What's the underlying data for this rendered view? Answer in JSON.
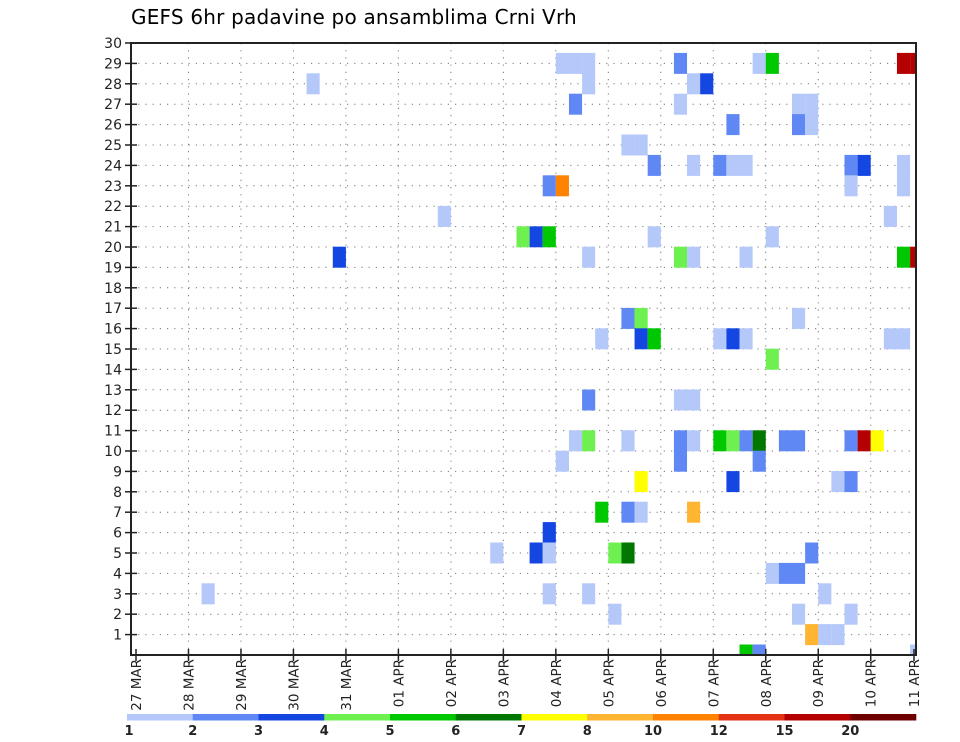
{
  "chart_data": {
    "type": "heatmap",
    "title": "GEFS 6hr padavine po ansamblima Crni Vrh",
    "xlabel": "",
    "ylabel": "",
    "x_unit": "6-hour step from 27 MAR",
    "x_tick_labels": [
      "27 MAR",
      "28 MAR",
      "29 MAR",
      "30 MAR",
      "31 MAR",
      "01 APR",
      "02 APR",
      "03 APR",
      "04 APR",
      "05 APR",
      "06 APR",
      "07 APR",
      "08 APR",
      "09 APR",
      "10 APR",
      "11 APR"
    ],
    "steps_per_day": 4,
    "y_tick_labels": [
      "1",
      "2",
      "3",
      "4",
      "5",
      "6",
      "7",
      "8",
      "9",
      "10",
      "11",
      "12",
      "13",
      "14",
      "15",
      "16",
      "17",
      "18",
      "19",
      "20",
      "21",
      "22",
      "23",
      "24",
      "25",
      "26",
      "27",
      "28",
      "29",
      "30"
    ],
    "ylim": [
      0,
      30
    ],
    "grid": true,
    "colorbar": {
      "placement": "bottom",
      "levels": [
        "1",
        "2",
        "3",
        "4",
        "5",
        "6",
        "7",
        "8",
        "10",
        "12",
        "15",
        "20"
      ],
      "colors": [
        "#b4c8fa",
        "#6088f5",
        "#1446e1",
        "#6ef050",
        "#00c800",
        "#007800",
        "#ffff00",
        "#ffb432",
        "#ff8200",
        "#e63214",
        "#b40000",
        "#6e0000"
      ]
    },
    "cells_format": "[time_step, ensemble_member, color_bin_index]",
    "cells": [
      [
        32,
        29,
        0
      ],
      [
        33,
        29,
        0
      ],
      [
        34,
        29,
        0
      ],
      [
        41,
        29,
        1
      ],
      [
        47,
        29,
        0
      ],
      [
        48,
        29,
        4
      ],
      [
        58,
        29,
        10
      ],
      [
        59,
        29,
        10
      ],
      [
        13,
        28,
        0
      ],
      [
        34,
        28,
        0
      ],
      [
        42,
        28,
        0
      ],
      [
        43,
        28,
        2
      ],
      [
        33,
        27,
        1
      ],
      [
        41,
        27,
        0
      ],
      [
        50,
        27,
        0
      ],
      [
        51,
        27,
        0
      ],
      [
        45,
        26,
        1
      ],
      [
        50,
        26,
        1
      ],
      [
        51,
        26,
        0
      ],
      [
        37,
        25,
        0
      ],
      [
        38,
        25,
        0
      ],
      [
        39,
        24,
        1
      ],
      [
        42,
        24,
        0
      ],
      [
        44,
        24,
        1
      ],
      [
        45,
        24,
        0
      ],
      [
        46,
        24,
        0
      ],
      [
        54,
        24,
        1
      ],
      [
        55,
        24,
        2
      ],
      [
        58,
        24,
        0
      ],
      [
        31,
        23,
        1
      ],
      [
        32,
        23,
        8
      ],
      [
        54,
        23,
        0
      ],
      [
        58,
        23,
        0
      ],
      [
        23,
        21.5,
        0
      ],
      [
        57,
        21.5,
        0
      ],
      [
        29,
        20.5,
        3
      ],
      [
        30,
        20.5,
        2
      ],
      [
        31,
        20.5,
        4
      ],
      [
        39,
        20.5,
        0
      ],
      [
        48,
        20.5,
        0
      ],
      [
        15,
        19.5,
        2
      ],
      [
        34,
        19.5,
        0
      ],
      [
        41,
        19.5,
        3
      ],
      [
        42,
        19.5,
        0
      ],
      [
        46,
        19.5,
        0
      ],
      [
        58,
        19.5,
        4
      ],
      [
        59,
        19.5,
        10
      ],
      [
        37,
        16.5,
        1
      ],
      [
        38,
        16.5,
        3
      ],
      [
        50,
        16.5,
        0
      ],
      [
        35,
        15.5,
        0
      ],
      [
        38,
        15.5,
        2
      ],
      [
        39,
        15.5,
        4
      ],
      [
        44,
        15.5,
        0
      ],
      [
        45,
        15.5,
        2
      ],
      [
        46,
        15.5,
        0
      ],
      [
        57,
        15.5,
        0
      ],
      [
        58,
        15.5,
        0
      ],
      [
        48,
        14.5,
        3
      ],
      [
        34,
        12.5,
        1
      ],
      [
        41,
        12.5,
        0
      ],
      [
        42,
        12.5,
        0
      ],
      [
        33,
        10.5,
        0
      ],
      [
        34,
        10.5,
        3
      ],
      [
        37,
        10.5,
        0
      ],
      [
        41,
        10.5,
        1
      ],
      [
        42,
        10.5,
        0
      ],
      [
        44,
        10.5,
        4
      ],
      [
        45,
        10.5,
        3
      ],
      [
        46,
        10.5,
        1
      ],
      [
        47,
        10.5,
        5
      ],
      [
        49,
        10.5,
        1
      ],
      [
        50,
        10.5,
        1
      ],
      [
        54,
        10.5,
        1
      ],
      [
        55,
        10.5,
        10
      ],
      [
        56,
        10.5,
        6
      ],
      [
        32,
        9.5,
        0
      ],
      [
        41,
        9.5,
        1
      ],
      [
        47,
        9.5,
        1
      ],
      [
        38,
        8.5,
        6
      ],
      [
        45,
        8.5,
        2
      ],
      [
        53,
        8.5,
        0
      ],
      [
        54,
        8.5,
        1
      ],
      [
        35,
        7,
        4
      ],
      [
        37,
        7,
        1
      ],
      [
        38,
        7,
        0
      ],
      [
        42,
        7,
        7
      ],
      [
        31,
        6,
        2
      ],
      [
        27,
        5,
        0
      ],
      [
        30,
        5,
        2
      ],
      [
        31,
        5,
        0
      ],
      [
        36,
        5,
        3
      ],
      [
        37,
        5,
        5
      ],
      [
        51,
        5,
        1
      ],
      [
        48,
        4,
        0
      ],
      [
        49,
        4,
        1
      ],
      [
        50,
        4,
        1
      ],
      [
        5,
        3,
        0
      ],
      [
        31,
        3,
        0
      ],
      [
        34,
        3,
        0
      ],
      [
        52,
        3,
        0
      ],
      [
        36,
        2,
        0
      ],
      [
        50,
        2,
        0
      ],
      [
        54,
        2,
        0
      ],
      [
        51,
        1,
        7
      ],
      [
        52,
        1,
        0
      ],
      [
        53,
        1,
        0
      ],
      [
        46,
        0,
        4
      ],
      [
        47,
        0,
        1
      ],
      [
        59,
        0,
        0
      ]
    ]
  }
}
